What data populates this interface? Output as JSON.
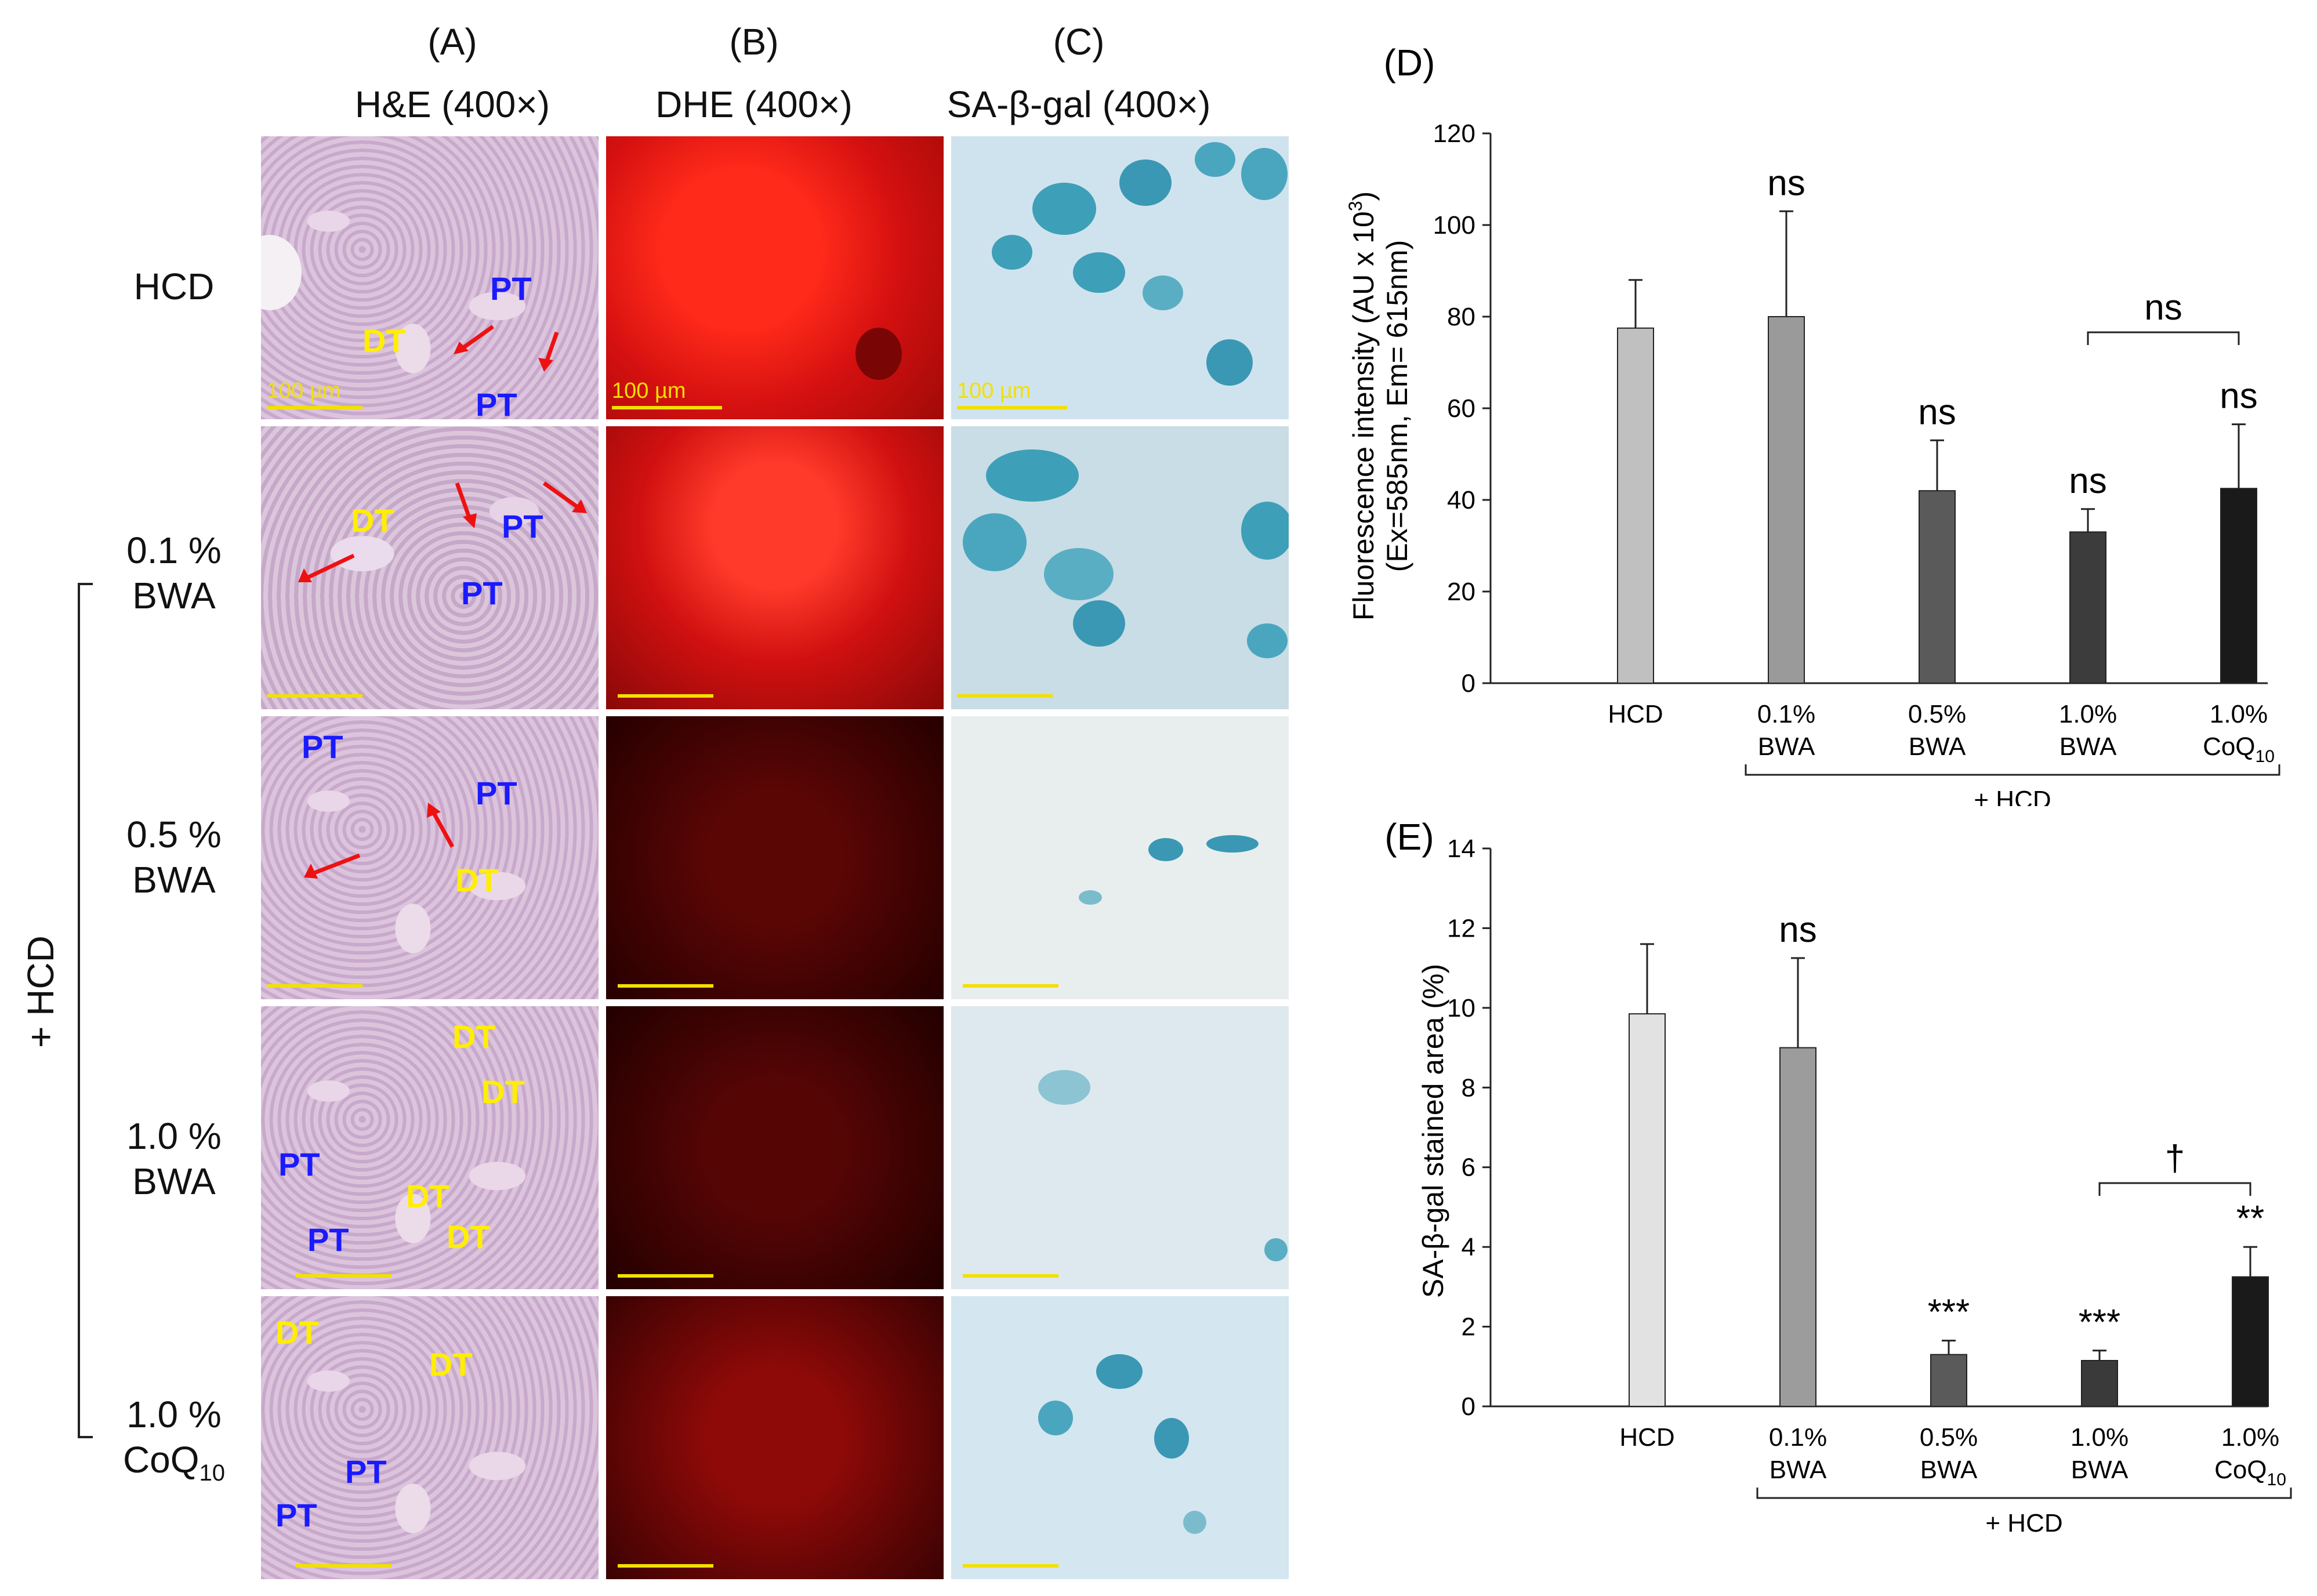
{
  "columns": {
    "a_letter": "(A)",
    "a_title": "H&E (400×)",
    "b_letter": "(B)",
    "b_title": "DHE (400×)",
    "c_letter": "(C)",
    "c_title": "SA-β-gal (400×)"
  },
  "rows": [
    {
      "line1": "HCD",
      "line2": ""
    },
    {
      "line1": "0.1 %",
      "line2": "BWA"
    },
    {
      "line1": "0.5 %",
      "line2": "BWA"
    },
    {
      "line1": "1.0 %",
      "line2": "BWA"
    },
    {
      "line1": "1.0 %",
      "line2": "CoQ",
      "line2_sub": "10"
    }
  ],
  "hcd_group_label": "+ HCD",
  "scale_bar_label": "100 µm",
  "tissue_labels": {
    "dt": "DT",
    "pt": "PT"
  },
  "colors": {
    "arrow": "#ee1111",
    "scale": "#f2e000",
    "dt": "#ffee00",
    "pt": "#1a1aff"
  },
  "chart_data": [
    {
      "type": "bar",
      "panel_letter": "(D)",
      "ylabel_line1": "Fluorescence intensity (AU x 10",
      "ylabel_sup": "3",
      "ylabel_line1_end": ")",
      "ylabel_line2": "(Ex=585nm, Em= 615nm)",
      "ylim": [
        0,
        120
      ],
      "yticks": [
        "0",
        "20",
        "40",
        "60",
        "80",
        "100",
        "120"
      ],
      "categories": [
        {
          "line1": "HCD",
          "line2": ""
        },
        {
          "line1": "0.1%",
          "line2": "BWA"
        },
        {
          "line1": "0.5%",
          "line2": "BWA"
        },
        {
          "line1": "1.0%",
          "line2": "BWA"
        },
        {
          "line1": "1.0%",
          "line2": "CoQ",
          "sub": "10"
        }
      ],
      "values": [
        77.5,
        80,
        42,
        33,
        42.5
      ],
      "errors": [
        10.5,
        23,
        11,
        5,
        14
      ],
      "bar_colors": [
        "#c0c0c0",
        "#9a9a9a",
        "#5a5a5a",
        "#3c3c3c",
        "#1a1a1a"
      ],
      "significance": [
        "",
        "ns",
        "ns",
        "ns",
        "ns"
      ],
      "bracket_label": "ns",
      "group_label": "+ HCD"
    },
    {
      "type": "bar",
      "panel_letter": "(E)",
      "ylabel": "SA-β-gal stained area (%)",
      "ylim": [
        0,
        14
      ],
      "yticks": [
        "0",
        "2",
        "4",
        "6",
        "8",
        "10",
        "12",
        "14"
      ],
      "categories": [
        {
          "line1": "HCD",
          "line2": ""
        },
        {
          "line1": "0.1%",
          "line2": "BWA"
        },
        {
          "line1": "0.5%",
          "line2": "BWA"
        },
        {
          "line1": "1.0%",
          "line2": "BWA"
        },
        {
          "line1": "1.0%",
          "line2": "CoQ",
          "sub": "10"
        }
      ],
      "values": [
        9.85,
        9.0,
        1.3,
        1.15,
        3.25
      ],
      "errors": [
        1.75,
        2.25,
        0.35,
        0.25,
        0.75
      ],
      "bar_colors": [
        "#e2e2e2",
        "#9c9c9c",
        "#5a5a5a",
        "#3a3a3a",
        "#1a1a1a"
      ],
      "significance": [
        "",
        "ns",
        "***",
        "***",
        "**"
      ],
      "bracket_label": "†",
      "group_label": "+ HCD"
    }
  ]
}
